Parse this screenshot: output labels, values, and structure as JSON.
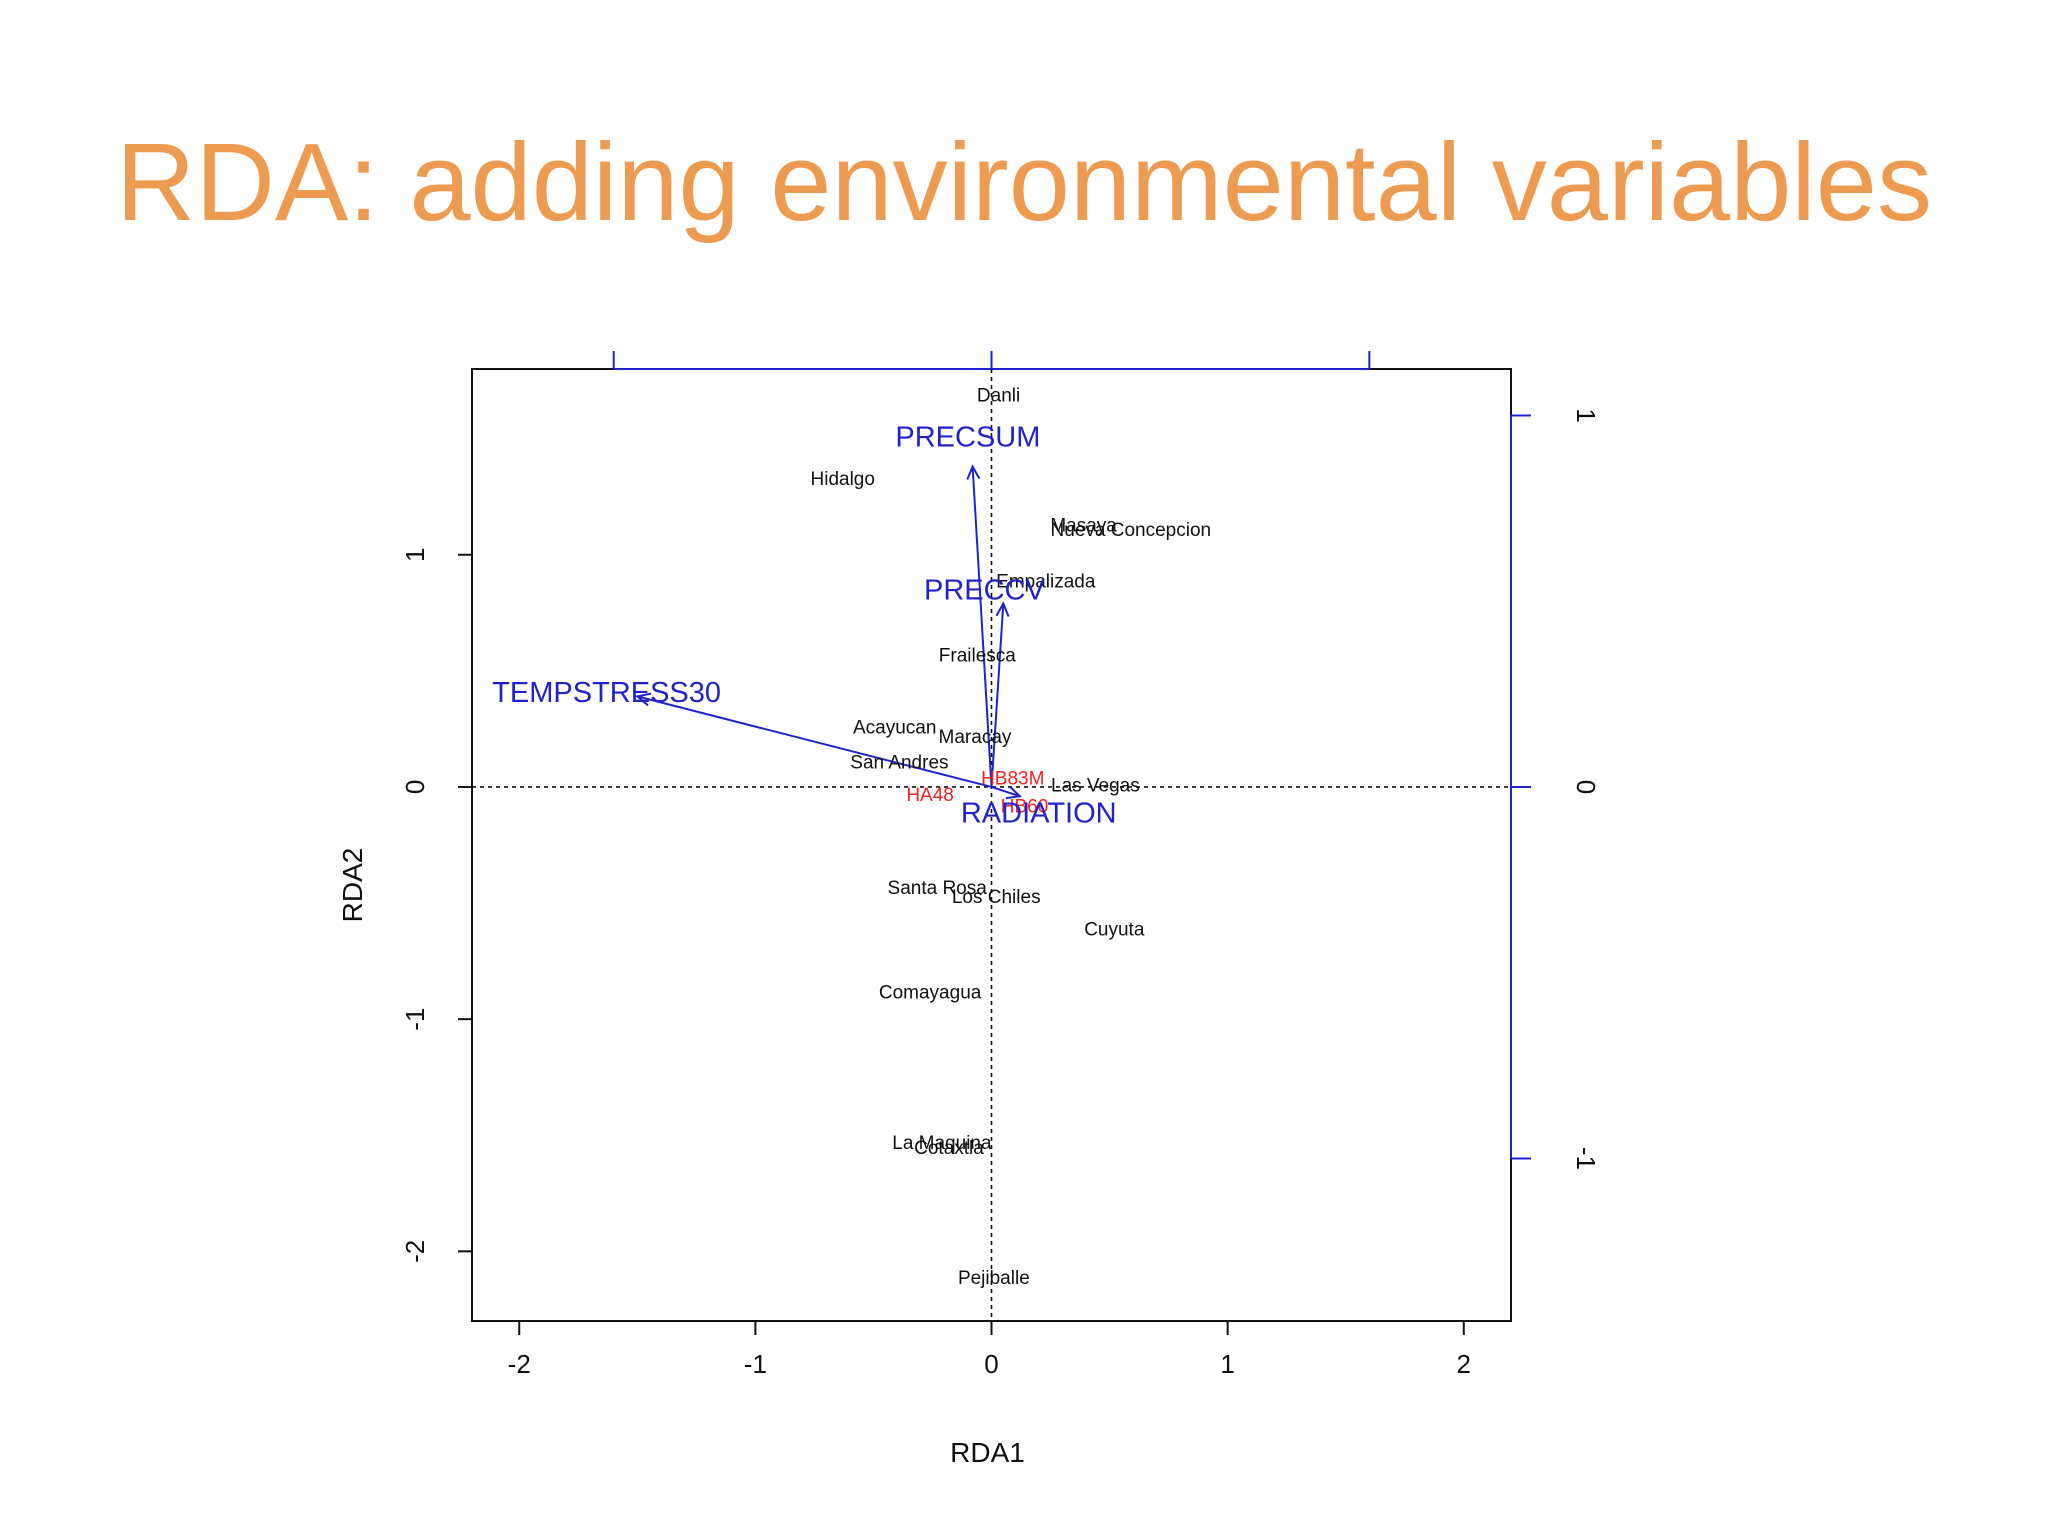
{
  "slide": {
    "title": "RDA: adding environmental variables"
  },
  "chart_data": {
    "type": "scatter",
    "subtype": "rda-triplot",
    "xlabel": "RDA1",
    "ylabel": "RDA2",
    "xlim": [
      -2.2,
      2.2
    ],
    "ylim": [
      -2.3,
      1.8
    ],
    "x_ticks": [
      -2,
      -1,
      0,
      1,
      2
    ],
    "x_tick_labels": [
      "-2",
      "-1",
      "0",
      "1",
      "2"
    ],
    "y_ticks": [
      -2,
      -1,
      0,
      1
    ],
    "y_tick_labels": [
      "-2",
      "-1",
      "0",
      "1"
    ],
    "secondary_axes": {
      "color": "#2222cc",
      "right_ticks": [
        -1,
        0,
        1
      ],
      "right_tick_labels": [
        "-1",
        "0",
        "1"
      ],
      "right_scale": 1.6,
      "top_ticks": [
        -1,
        0,
        1
      ],
      "top_scale": 1.6
    },
    "reference_lines": {
      "x": 0,
      "y": 0,
      "style": "dotted"
    },
    "sites": [
      {
        "label": "Danli",
        "x": 0.03,
        "y": 1.69
      },
      {
        "label": "Hidalgo",
        "x": -0.63,
        "y": 1.33
      },
      {
        "label": "Masaya",
        "x": 0.39,
        "y": 1.13
      },
      {
        "label": "Nueva Concepcion",
        "x": 0.59,
        "y": 1.11
      },
      {
        "label": "Empalizada",
        "x": 0.23,
        "y": 0.89
      },
      {
        "label": "Frailesca",
        "x": -0.06,
        "y": 0.57
      },
      {
        "label": "Acayucan",
        "x": -0.41,
        "y": 0.26
      },
      {
        "label": "Maracay",
        "x": -0.07,
        "y": 0.22
      },
      {
        "label": "San Andres",
        "x": -0.39,
        "y": 0.11
      },
      {
        "label": "Las Vegas",
        "x": 0.44,
        "y": 0.01
      },
      {
        "label": "Santa Rosa",
        "x": -0.23,
        "y": -0.43
      },
      {
        "label": "Los Chiles",
        "x": 0.02,
        "y": -0.47
      },
      {
        "label": "Cuyuta",
        "x": 0.52,
        "y": -0.61
      },
      {
        "label": "Comayagua",
        "x": -0.26,
        "y": -0.88
      },
      {
        "label": "La Maquina",
        "x": -0.21,
        "y": -1.53
      },
      {
        "label": "Cotaxtla",
        "x": -0.18,
        "y": -1.55
      },
      {
        "label": "Pejiballe",
        "x": 0.01,
        "y": -2.11
      }
    ],
    "species": [
      {
        "label": "HB83M",
        "x": 0.09,
        "y": 0.04,
        "color": "#ee2222"
      },
      {
        "label": "HA48",
        "x": -0.26,
        "y": -0.03,
        "color": "#ee2222"
      },
      {
        "label": "HB60",
        "x": 0.14,
        "y": -0.08,
        "color": "#ee2222"
      }
    ],
    "biplot_arrows": [
      {
        "label": "PRECSUM",
        "x": -0.08,
        "y": 1.38,
        "label_x": -0.1,
        "label_y": 1.51
      },
      {
        "label": "PRECCV",
        "x": 0.05,
        "y": 0.79,
        "label_x": -0.03,
        "label_y": 0.85
      },
      {
        "label": "TEMPSTRESS30",
        "x": -1.5,
        "y": 0.39,
        "label_x": -1.63,
        "label_y": 0.41
      },
      {
        "label": "RADIATION",
        "x": 0.12,
        "y": -0.04,
        "label_x": 0.2,
        "label_y": -0.11
      }
    ],
    "colors": {
      "arrows": "#2222cc",
      "sites": "#111111",
      "species": "#ee2222",
      "frame": "#111111"
    }
  }
}
